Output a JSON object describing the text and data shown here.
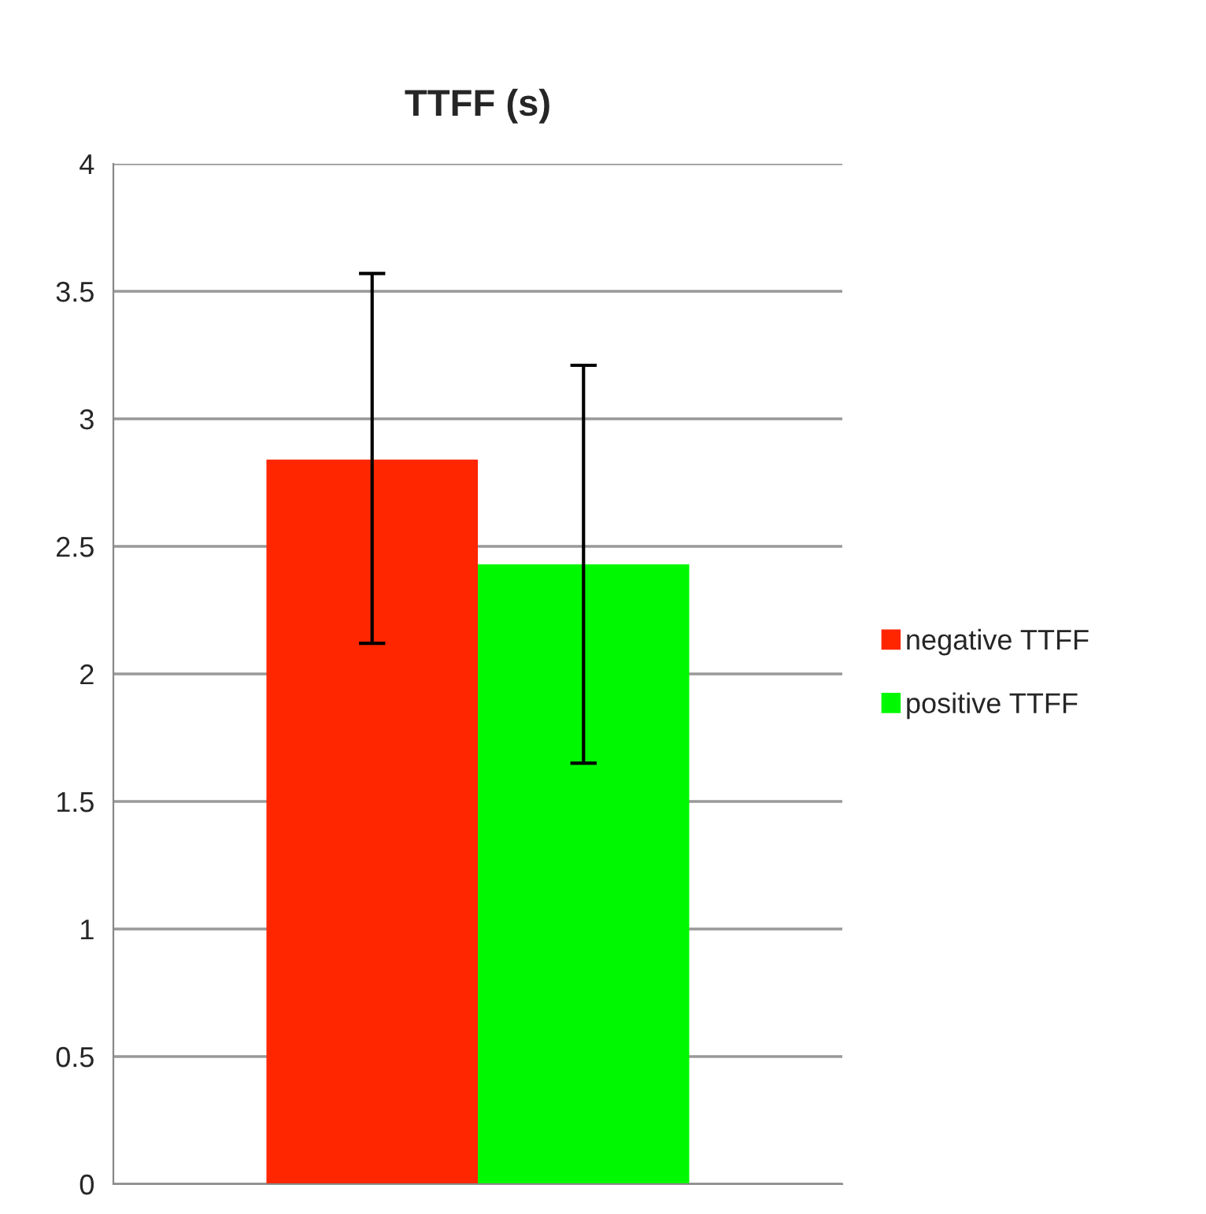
{
  "chart_data": {
    "type": "bar",
    "title": "TTFF (s)",
    "categories": [
      null
    ],
    "series": [
      {
        "name": "negative TTFF",
        "color": "#ff2600",
        "values": [
          2.84
        ],
        "errors": [
          [
            2.12,
            3.57
          ]
        ]
      },
      {
        "name": "positive TTFF",
        "color": "#00f900",
        "values": [
          2.43
        ],
        "errors": [
          [
            1.65,
            3.21
          ]
        ]
      }
    ],
    "ylim": [
      0,
      4
    ],
    "yticks": [
      0,
      0.5,
      1,
      1.5,
      2,
      2.5,
      3,
      3.5,
      4
    ],
    "grid": "y",
    "legend": "right",
    "tick_labels": "y"
  }
}
